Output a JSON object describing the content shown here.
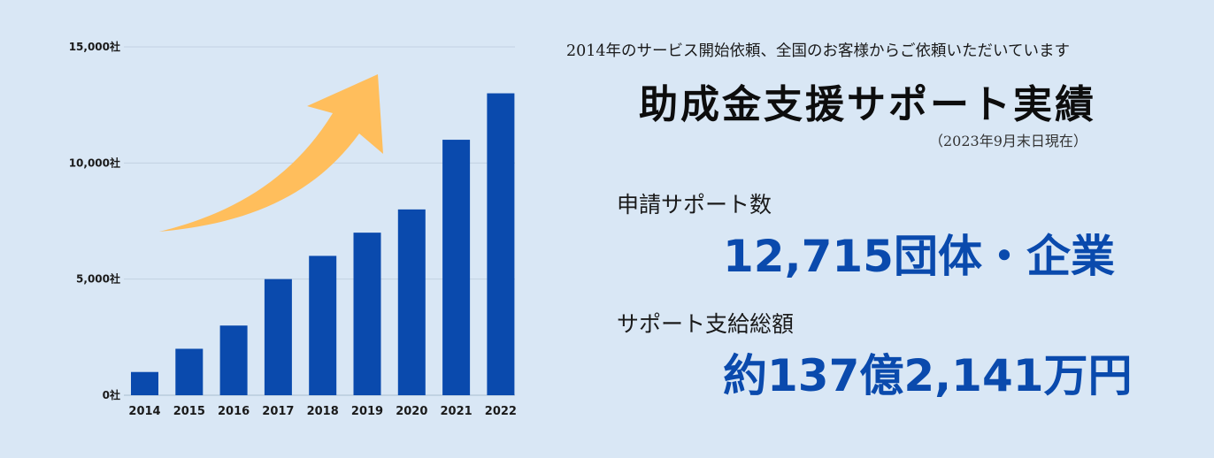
{
  "header": {
    "subtitle": "2014年のサービス開始依頼、全国のお客様からご依頼いただいています",
    "title": "助成金支援サポート実績",
    "as_of": "（2023年9月末日現在）"
  },
  "stats": [
    {
      "label": "申請サポート数",
      "value": "12,715団体・企業"
    },
    {
      "label": "サポート支給総額",
      "value": "約137億2,141万円"
    }
  ],
  "colors": {
    "background": "#d9e7f5",
    "bar": "#0a4aad",
    "arrow": "#ffbe5c",
    "gridline": "#c2d2e2",
    "value_text": "#0a4aad"
  },
  "chart_data": {
    "type": "bar",
    "categories": [
      "2014",
      "2015",
      "2016",
      "2017",
      "2018",
      "2019",
      "2020",
      "2021",
      "2022"
    ],
    "values": [
      1000,
      2000,
      3000,
      5000,
      6000,
      7000,
      8000,
      11000,
      13000
    ],
    "ylim": [
      0,
      15000
    ],
    "yticks": [
      0,
      5000,
      10000,
      15000
    ],
    "ytick_labels": [
      "0社",
      "5,000社",
      "10,000社",
      "15,000社"
    ],
    "grid": true,
    "legend": "none",
    "annotation": "upward-trend-arrow"
  }
}
